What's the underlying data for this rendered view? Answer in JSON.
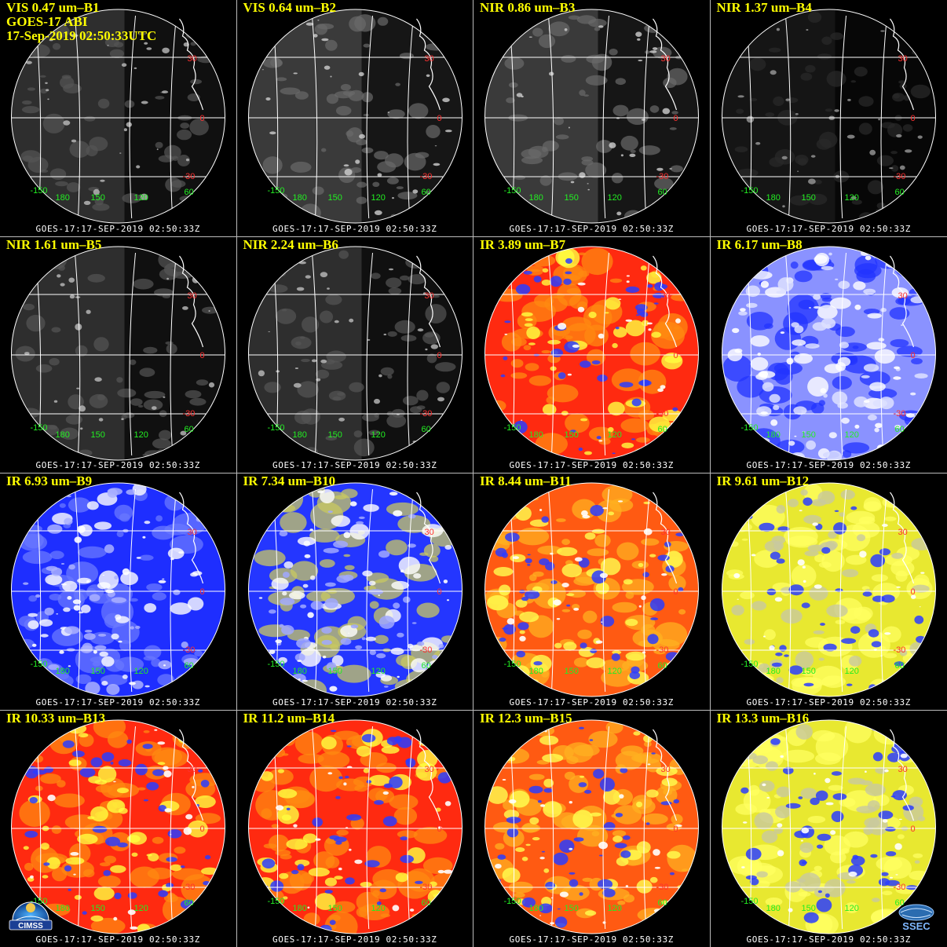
{
  "header": {
    "satellite": "GOES-17 ABI",
    "datetime": "17-Sep-2019 02:50:33UTC"
  },
  "footer_label": "GOES-17:17-SEP-2019 02:50:33Z",
  "tiles": [
    {
      "label": "VIS 0.47 um–B1",
      "style": "vis-dark"
    },
    {
      "label": "VIS 0.64 um–B2",
      "style": "vis"
    },
    {
      "label": "NIR 0.86 um–B3",
      "style": "vis"
    },
    {
      "label": "NIR 1.37 um–B4",
      "style": "vis-black"
    },
    {
      "label": "NIR 1.61 um–B5",
      "style": "vis-dark"
    },
    {
      "label": "NIR 2.24 um–B6",
      "style": "vis-dark"
    },
    {
      "label": "IR 3.89 um–B7",
      "style": "ir-red"
    },
    {
      "label": "IR 6.17 um–B8",
      "style": "wv-light"
    },
    {
      "label": "IR 6.93 um–B9",
      "style": "wv-blue"
    },
    {
      "label": "IR 7.34 um–B10",
      "style": "wv-mix"
    },
    {
      "label": "IR 8.44 um–B11",
      "style": "ir-orange"
    },
    {
      "label": "IR 9.61 um–B12",
      "style": "ir-yellow"
    },
    {
      "label": "IR 10.33 um–B13",
      "style": "ir-red"
    },
    {
      "label": "IR 11.2 um–B14",
      "style": "ir-red"
    },
    {
      "label": "IR 12.3 um–B15",
      "style": "ir-orange"
    },
    {
      "label": "IR 13.3 um–B16",
      "style": "ir-yellow"
    }
  ],
  "grid_labels": {
    "lat": [
      "30",
      "0",
      "-30"
    ],
    "lon": [
      "-150",
      "180",
      "150",
      "120",
      "60"
    ],
    "edge": "-30"
  },
  "logos": {
    "left": "CIMSS",
    "right": "SSEC"
  },
  "colors": {
    "title": "#ffff00",
    "lat_label": "#ff3030",
    "lon_label": "#22ee22",
    "gridline": "#ffffff"
  }
}
